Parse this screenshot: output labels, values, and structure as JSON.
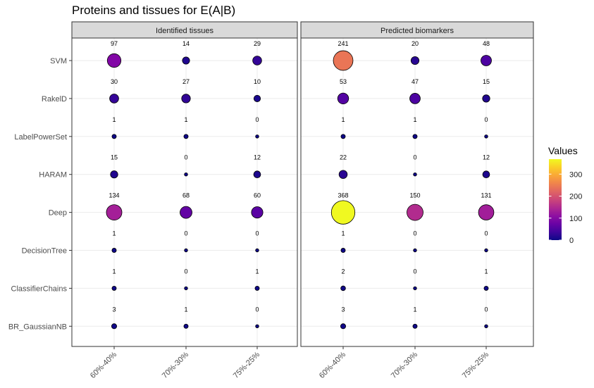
{
  "chart_data": {
    "type": "scatter",
    "title": "Proteins and tissues for E(A|B)",
    "categories_x": [
      "60%-40%",
      "70%-30%",
      "75%-25%"
    ],
    "categories_y": [
      "SVM",
      "RakelD",
      "LabelPowerSet",
      "HARAM",
      "Deep",
      "DecisionTree",
      "ClassifierChains",
      "BR_GaussianNB"
    ],
    "facets": [
      {
        "name": "Identified tissues",
        "values": [
          [
            97,
            14,
            29
          ],
          [
            30,
            27,
            10
          ],
          [
            1,
            1,
            0
          ],
          [
            15,
            0,
            12
          ],
          [
            134,
            68,
            60
          ],
          [
            1,
            0,
            0
          ],
          [
            1,
            0,
            1
          ],
          [
            3,
            1,
            0
          ]
        ]
      },
      {
        "name": "Predicted biomarkers",
        "values": [
          [
            241,
            20,
            48
          ],
          [
            53,
            47,
            15
          ],
          [
            1,
            1,
            0
          ],
          [
            22,
            0,
            12
          ],
          [
            368,
            150,
            131
          ],
          [
            1,
            0,
            0
          ],
          [
            2,
            0,
            1
          ],
          [
            3,
            1,
            0
          ]
        ]
      }
    ],
    "legend": {
      "title": "Values",
      "ticks": [
        0,
        100,
        200,
        300
      ],
      "range": [
        0,
        368
      ],
      "position": "right",
      "palette": "plasma"
    },
    "grid": true,
    "colors": {
      "strip_fill": "#d9d9d9",
      "grid": "#ebebeb",
      "panel_border": "#333333",
      "point_outline": "#000000"
    }
  }
}
